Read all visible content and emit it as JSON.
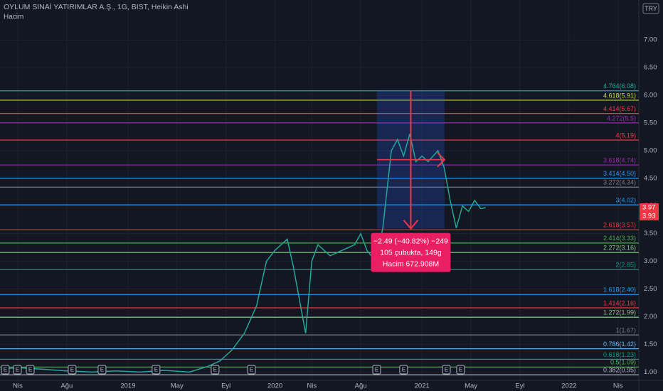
{
  "header": {
    "title": "OYLUM SINAİ YATIRIMLAR A.Ş., 1G, BIST, Heikin Ashi",
    "volume_label": "Hacim",
    "currency": "TRY"
  },
  "chart_data": {
    "type": "line",
    "x": [
      -1.4,
      0,
      2,
      4,
      6,
      8,
      10,
      12,
      14,
      15.5,
      16.5,
      17.5,
      18.5,
      19.5,
      20.3,
      21,
      21.5,
      22,
      22.5,
      23,
      23.5,
      24,
      24.5,
      25.5,
      26.5,
      27.5,
      28,
      28.5,
      29.2,
      29.8,
      30.5,
      31,
      31.5,
      32,
      32.5,
      33,
      33.5,
      34.3,
      34.8,
      35.3,
      35.8,
      36.3,
      36.8,
      37.3,
      37.8,
      38.2
    ],
    "series": [
      {
        "color": "#26a69a",
        "values": [
          1.05,
          1.08,
          1.05,
          1.02,
          1.0,
          1.02,
          1.0,
          1.03,
          1.0,
          1.1,
          1.2,
          1.4,
          1.7,
          2.2,
          3.0,
          3.2,
          3.3,
          3.4,
          2.9,
          2.3,
          1.7,
          3.0,
          3.3,
          3.1,
          3.2,
          3.3,
          3.5,
          3.2,
          3.0,
          3.6,
          5.0,
          5.2,
          4.9,
          5.3,
          4.8,
          4.9,
          4.8,
          5.0,
          4.7,
          4.1,
          3.6,
          4.0,
          3.9,
          4.1,
          3.95,
          3.97
        ]
      }
    ],
    "xlim": [
      -1.45,
      50.7
    ],
    "xticks": [
      {
        "value": 0,
        "label": "Nis"
      },
      {
        "value": 4,
        "label": "Ağu"
      },
      {
        "value": 9,
        "label": "2019"
      },
      {
        "value": 13,
        "label": "May"
      },
      {
        "value": 17,
        "label": "Eyl"
      },
      {
        "value": 21,
        "label": "2020"
      },
      {
        "value": 24,
        "label": "Nis"
      },
      {
        "value": 28,
        "label": "Ağu"
      },
      {
        "value": 33,
        "label": "2021"
      },
      {
        "value": 37,
        "label": "May"
      },
      {
        "value": 41,
        "label": "Eyl"
      },
      {
        "value": 45,
        "label": "2022"
      },
      {
        "value": 49,
        "label": "Nis"
      }
    ],
    "ylim": [
      0.85,
      7.72
    ],
    "yticks": [
      {
        "value": 1,
        "label": "1.00"
      },
      {
        "value": 1.5,
        "label": "1.50"
      },
      {
        "value": 2,
        "label": "2.00"
      },
      {
        "value": 2.5,
        "label": "2.50"
      },
      {
        "value": 3,
        "label": "3.00"
      },
      {
        "value": 3.5,
        "label": "3.50"
      },
      {
        "value": 4,
        "label": "4.00"
      },
      {
        "value": 4.5,
        "label": "4.50"
      },
      {
        "value": 5,
        "label": "5.00"
      },
      {
        "value": 5.5,
        "label": "5.50"
      },
      {
        "value": 6,
        "label": "6.00"
      },
      {
        "value": 6.5,
        "label": "6.50"
      },
      {
        "value": 7,
        "label": "7.00"
      }
    ],
    "grid": true,
    "fib_levels": [
      {
        "label": "4.764(6.08)",
        "value": 6.08,
        "color": "#26a69a"
      },
      {
        "label": "4.618(5.91)",
        "value": 5.91,
        "color": "#cddc39"
      },
      {
        "label": "4.414(5.67)",
        "value": 5.67,
        "color": "#f23645"
      },
      {
        "label": "4.272(5.5)",
        "value": 5.5,
        "color": "#9c27b0"
      },
      {
        "label": "4(5.19)",
        "value": 5.19,
        "color": "#f23645"
      },
      {
        "label": "3.618(4.74)",
        "value": 4.74,
        "color": "#9c27b0"
      },
      {
        "label": "3.414(4.50)",
        "value": 4.5,
        "color": "#2196f3"
      },
      {
        "label": "3.272(4.34)",
        "value": 4.34,
        "color": "#787b86"
      },
      {
        "label": "3(4.02)",
        "value": 4.02,
        "color": "#2196f3"
      },
      {
        "label": "2.618(3.57)",
        "value": 3.57,
        "color": "#f23645"
      },
      {
        "label": "2.414(3.33)",
        "value": 3.33,
        "color": "#4caf50"
      },
      {
        "label": "2.272(3.16)",
        "value": 3.16,
        "color": "#81c784"
      },
      {
        "label": "2(2.85)",
        "value": 2.85,
        "color": "#089981"
      },
      {
        "label": "1.618(2.40)",
        "value": 2.4,
        "color": "#2196f3"
      },
      {
        "label": "1.414(2.16)",
        "value": 2.16,
        "color": "#f23645"
      },
      {
        "label": "1.272(1.99)",
        "value": 1.99,
        "color": "#81c784"
      },
      {
        "label": "1(1.67)",
        "value": 1.67,
        "color": "#787b86"
      },
      {
        "label": "0.786(1.42)",
        "value": 1.42,
        "color": "#64b5f6"
      },
      {
        "label": "0.618(1.23)",
        "value": 1.23,
        "color": "#089981"
      },
      {
        "label": "0.5(1.09)",
        "value": 1.09,
        "color": "#4caf50"
      },
      {
        "label": "0.382(0.95)",
        "value": 0.95,
        "color": "#b2b5be"
      }
    ],
    "measure": {
      "lines": [
        "−2.49 (−40.82%) −249",
        "105 çubukta, 149g",
        "Hacim 672.908M"
      ],
      "start_x": 29.33,
      "end_x": 34.84,
      "start": 6.08,
      "end": 3.59,
      "color": "#f23645"
    },
    "price_tags": [
      {
        "value": 3.97,
        "color": "#f23645"
      },
      {
        "value": 3.93,
        "color": "#f23645"
      }
    ],
    "earnings_label": "E",
    "earnings_x": [
      -1.05,
      -0.06,
      0.99,
      4.41,
      6.85,
      11.26,
      16.08,
      19.05,
      29.27,
      31.47,
      34.96,
      36.12
    ]
  }
}
